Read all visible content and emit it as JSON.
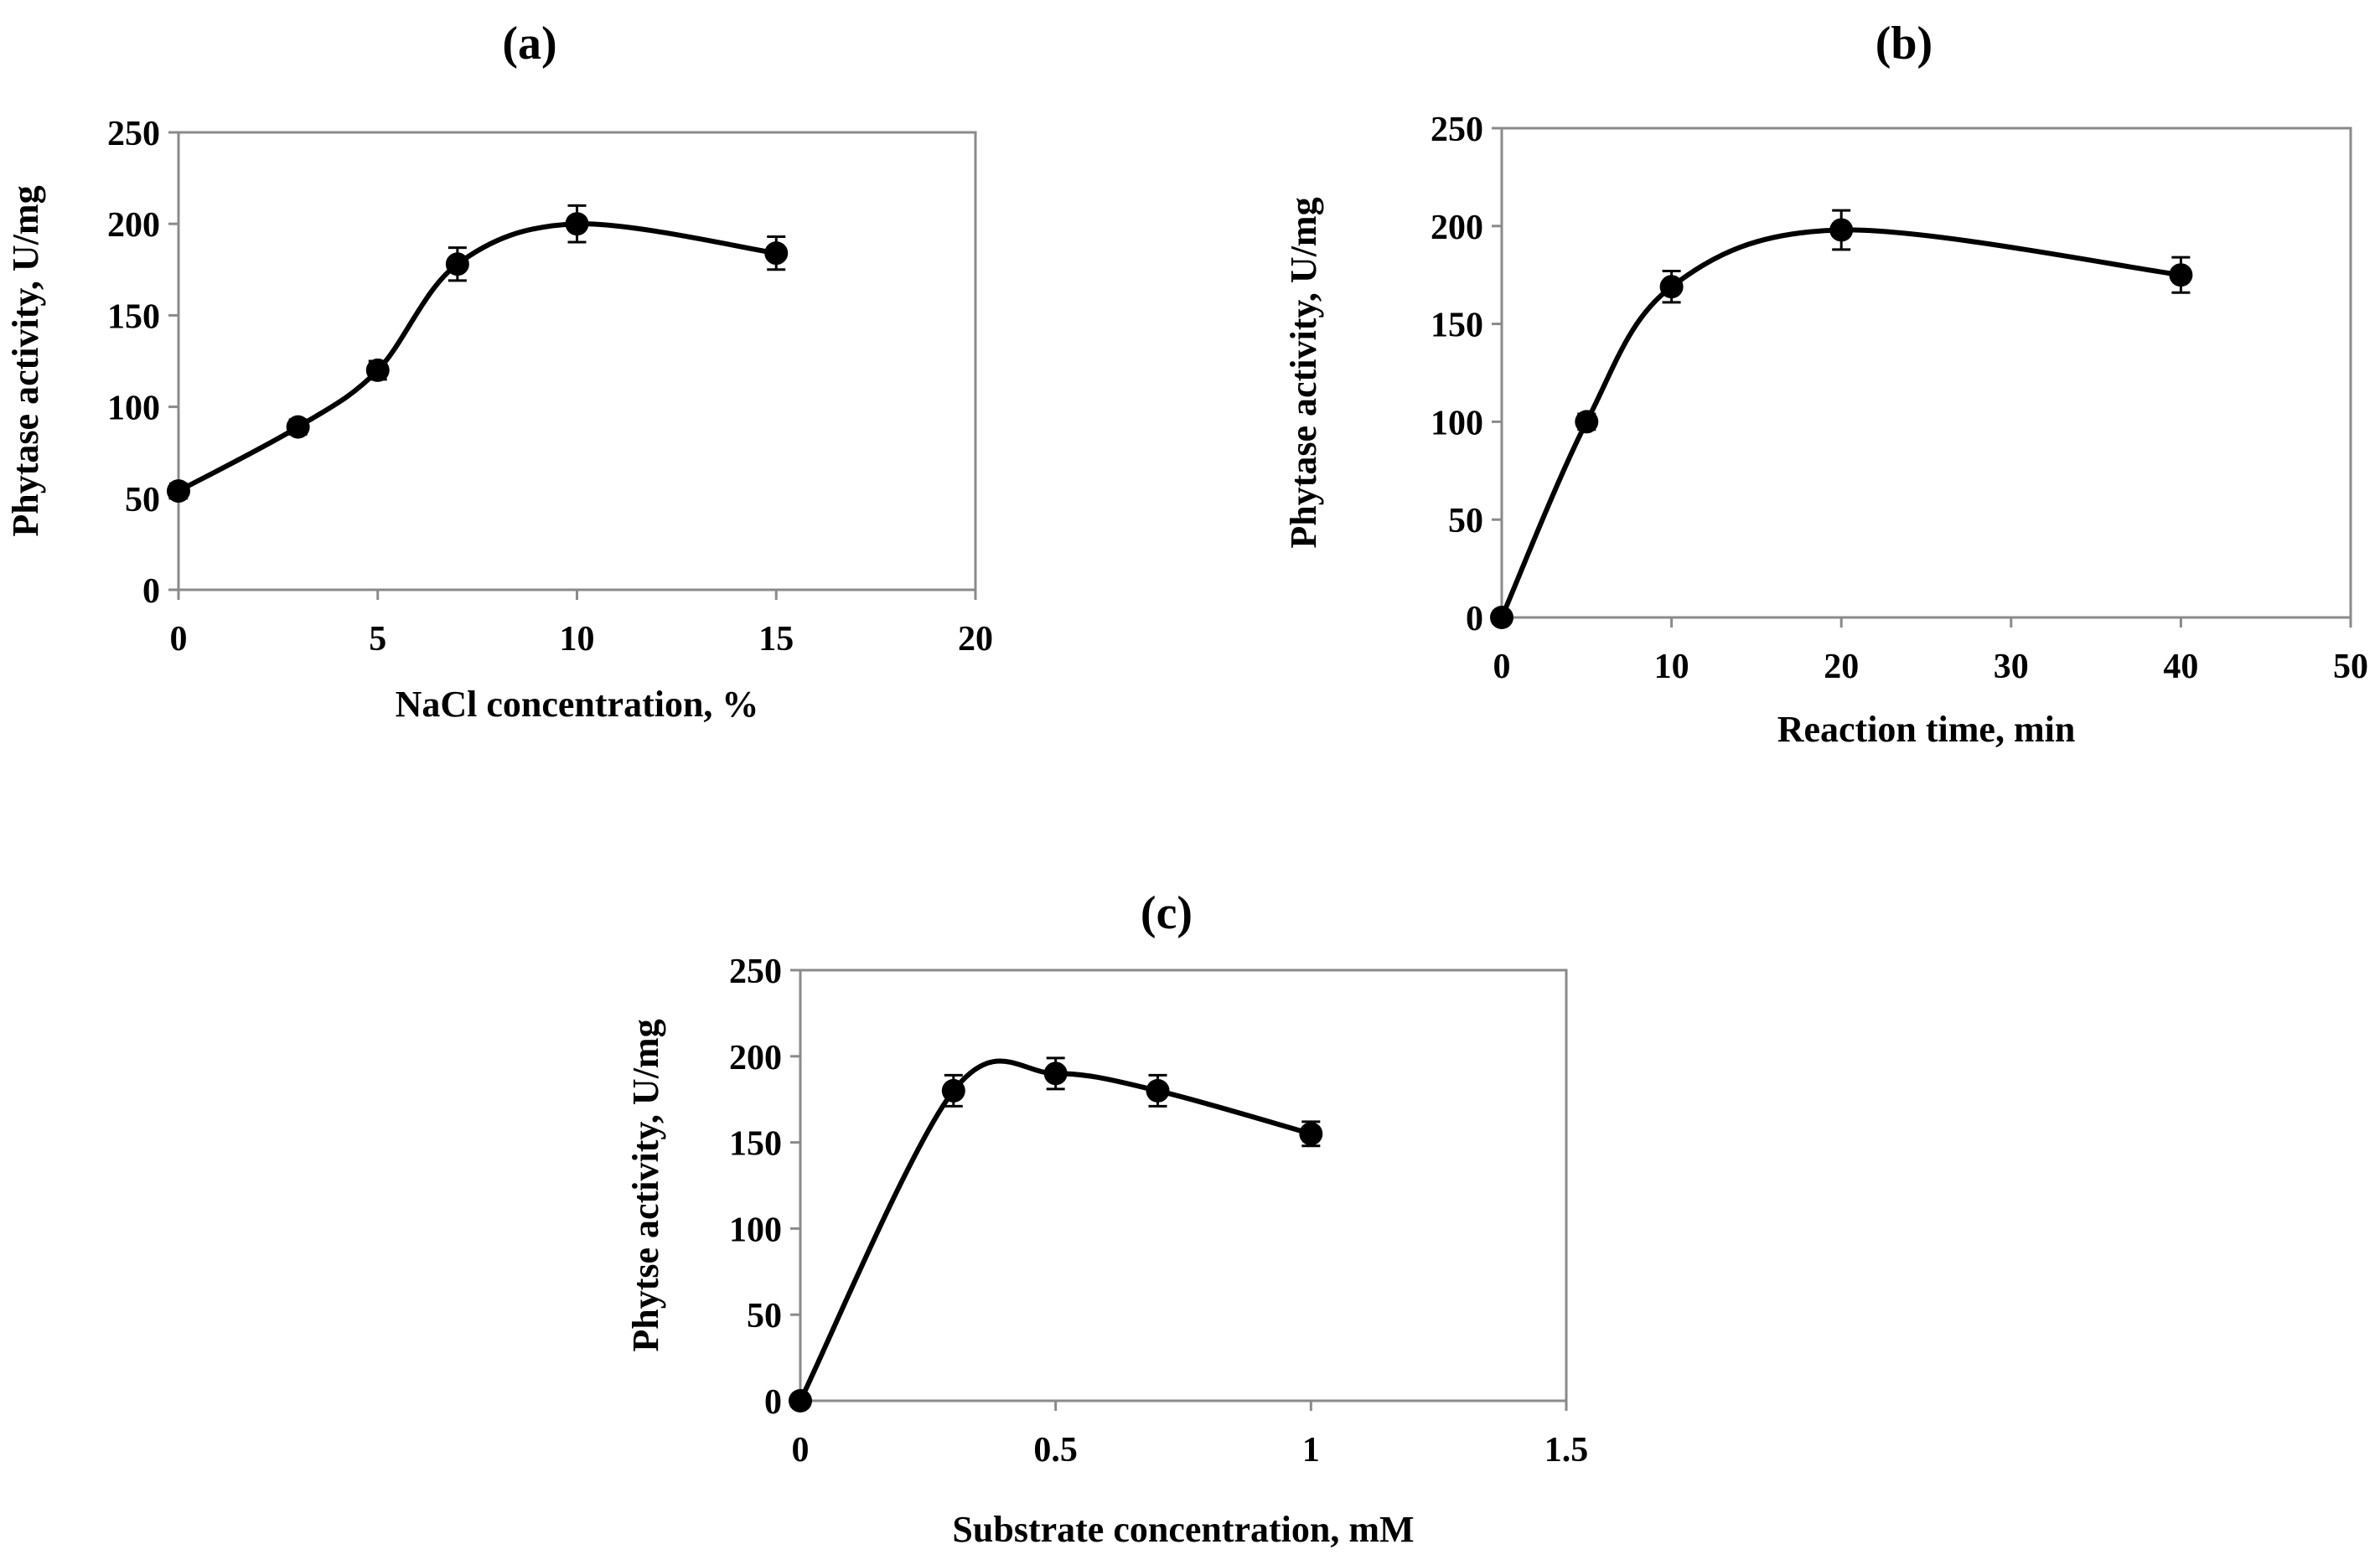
{
  "chart_data": [
    {
      "id": "a",
      "type": "line",
      "title": "(a)",
      "xlabel": "NaCl concentration, %",
      "ylabel": "Phytase activity, U/mg",
      "xlim": [
        0,
        20
      ],
      "ylim": [
        0,
        250
      ],
      "xticks": [
        0,
        5,
        10,
        15,
        20
      ],
      "yticks": [
        0,
        50,
        100,
        150,
        200,
        250
      ],
      "grid": false,
      "x": [
        0,
        3,
        5,
        7,
        10,
        15
      ],
      "y": [
        54,
        89,
        120,
        178,
        200,
        184
      ],
      "error": [
        4,
        4,
        5,
        9,
        10,
        9
      ]
    },
    {
      "id": "b",
      "type": "line",
      "title": "(b)",
      "xlabel": "Reaction time, min",
      "ylabel": "Phytase activity, U/mg",
      "xlim": [
        0,
        50
      ],
      "ylim": [
        0,
        250
      ],
      "xticks": [
        0,
        10,
        20,
        30,
        40,
        50
      ],
      "yticks": [
        0,
        50,
        100,
        150,
        200,
        250
      ],
      "grid": false,
      "x": [
        0,
        5,
        10,
        20,
        40
      ],
      "y": [
        0,
        100,
        169,
        198,
        175
      ],
      "error": [
        0,
        4,
        8,
        10,
        9
      ]
    },
    {
      "id": "c",
      "type": "line",
      "title": "(c)",
      "xlabel": "Substrate concentration, mM",
      "ylabel": "Phytse activity, U/mg",
      "xlim": [
        0,
        1.5
      ],
      "ylim": [
        0,
        250
      ],
      "xticks": [
        0,
        0.5,
        1,
        1.5
      ],
      "yticks": [
        0,
        50,
        100,
        150,
        200,
        250
      ],
      "grid": false,
      "x": [
        0,
        0.3,
        0.5,
        0.7,
        1
      ],
      "y": [
        0,
        180,
        190,
        180,
        155
      ],
      "error": [
        0,
        9,
        9,
        9,
        7
      ]
    }
  ]
}
